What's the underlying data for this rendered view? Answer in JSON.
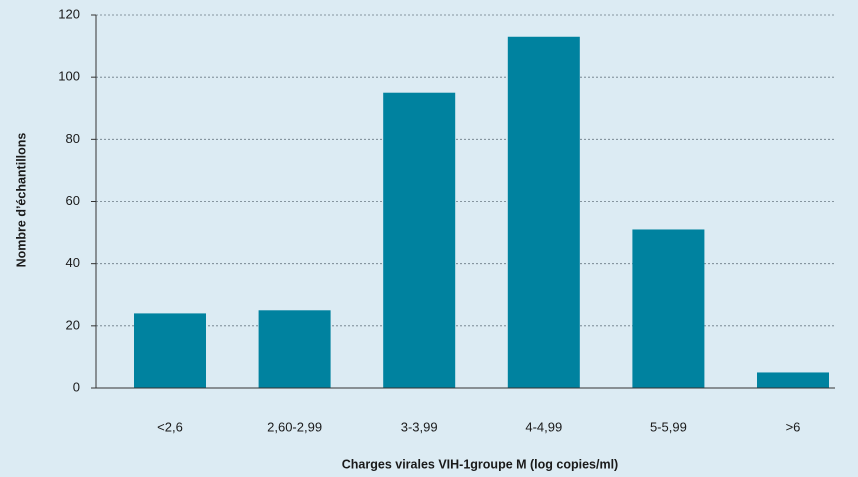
{
  "chart_data": {
    "type": "bar",
    "x_label": "Charges virales VIH-1groupe M (log copies/ml)",
    "y_label": "Nombre d’échantillons",
    "categories": [
      "<2,6",
      "2,60-2,99",
      "3-3,99",
      "4-4,99",
      "5-5,99",
      ">6"
    ],
    "values": [
      24,
      25,
      95,
      113,
      51,
      5
    ],
    "color": "#00829f",
    "ylim": [
      0,
      120
    ],
    "yticks": [
      0,
      20,
      40,
      60,
      80,
      100,
      120
    ],
    "grid": true
  }
}
